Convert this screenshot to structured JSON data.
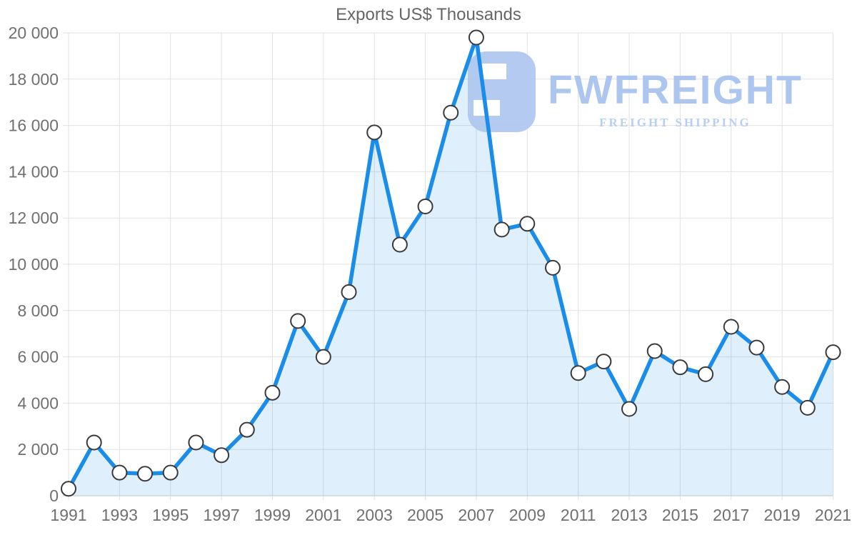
{
  "page": {
    "background": "#ffffff"
  },
  "watermark": {
    "brand": "FWFREIGHT",
    "tagline": "FREIGHT SHIPPING",
    "brand_color": "#a6c2ef",
    "tagline_color": "#b3cbf4",
    "icon_color": "#afc6f0"
  },
  "chart_data": {
    "type": "area",
    "title": "Exports US$ Thousands",
    "xlabel": "",
    "ylabel": "",
    "series_name": "Exports US$ Thousands",
    "x": [
      1991,
      1992,
      1993,
      1994,
      1995,
      1996,
      1997,
      1998,
      1999,
      2000,
      2001,
      2002,
      2003,
      2004,
      2005,
      2006,
      2007,
      2008,
      2009,
      2010,
      2011,
      2012,
      2013,
      2014,
      2015,
      2016,
      2017,
      2018,
      2019,
      2020,
      2021
    ],
    "values": [
      300,
      2300,
      1000,
      950,
      1000,
      2300,
      1750,
      2850,
      4450,
      7550,
      6000,
      8800,
      15700,
      10850,
      12500,
      16550,
      19800,
      11500,
      11750,
      9850,
      5300,
      5800,
      3750,
      6250,
      5550,
      5250,
      7300,
      6400,
      4700,
      3800,
      6200
    ],
    "ylim": [
      0,
      20000
    ],
    "ytick_step": 2000,
    "ytick_labels": [
      "0",
      "2 000",
      "4 000",
      "6 000",
      "8 000",
      "10 000",
      "12 000",
      "14 000",
      "16 000",
      "18 000",
      "20 000"
    ],
    "xtick_every": 2,
    "xtick_labels": [
      "1991",
      "1993",
      "1995",
      "1997",
      "1999",
      "2001",
      "2003",
      "2005",
      "2007",
      "2009",
      "2011",
      "2013",
      "2015",
      "2017",
      "2019",
      "2021"
    ],
    "grid": true,
    "legend_position": "none",
    "marker": "circle",
    "colors": {
      "line": "#1a8ce9",
      "area_fill": "rgba(26,140,233,0.14)",
      "marker_fill": "#ffffff",
      "marker_stroke": "#3a3a3a",
      "grid": "#e2e2e2",
      "axis": "#c9ced4",
      "tick_label": "#707070",
      "title": "#666666"
    }
  }
}
